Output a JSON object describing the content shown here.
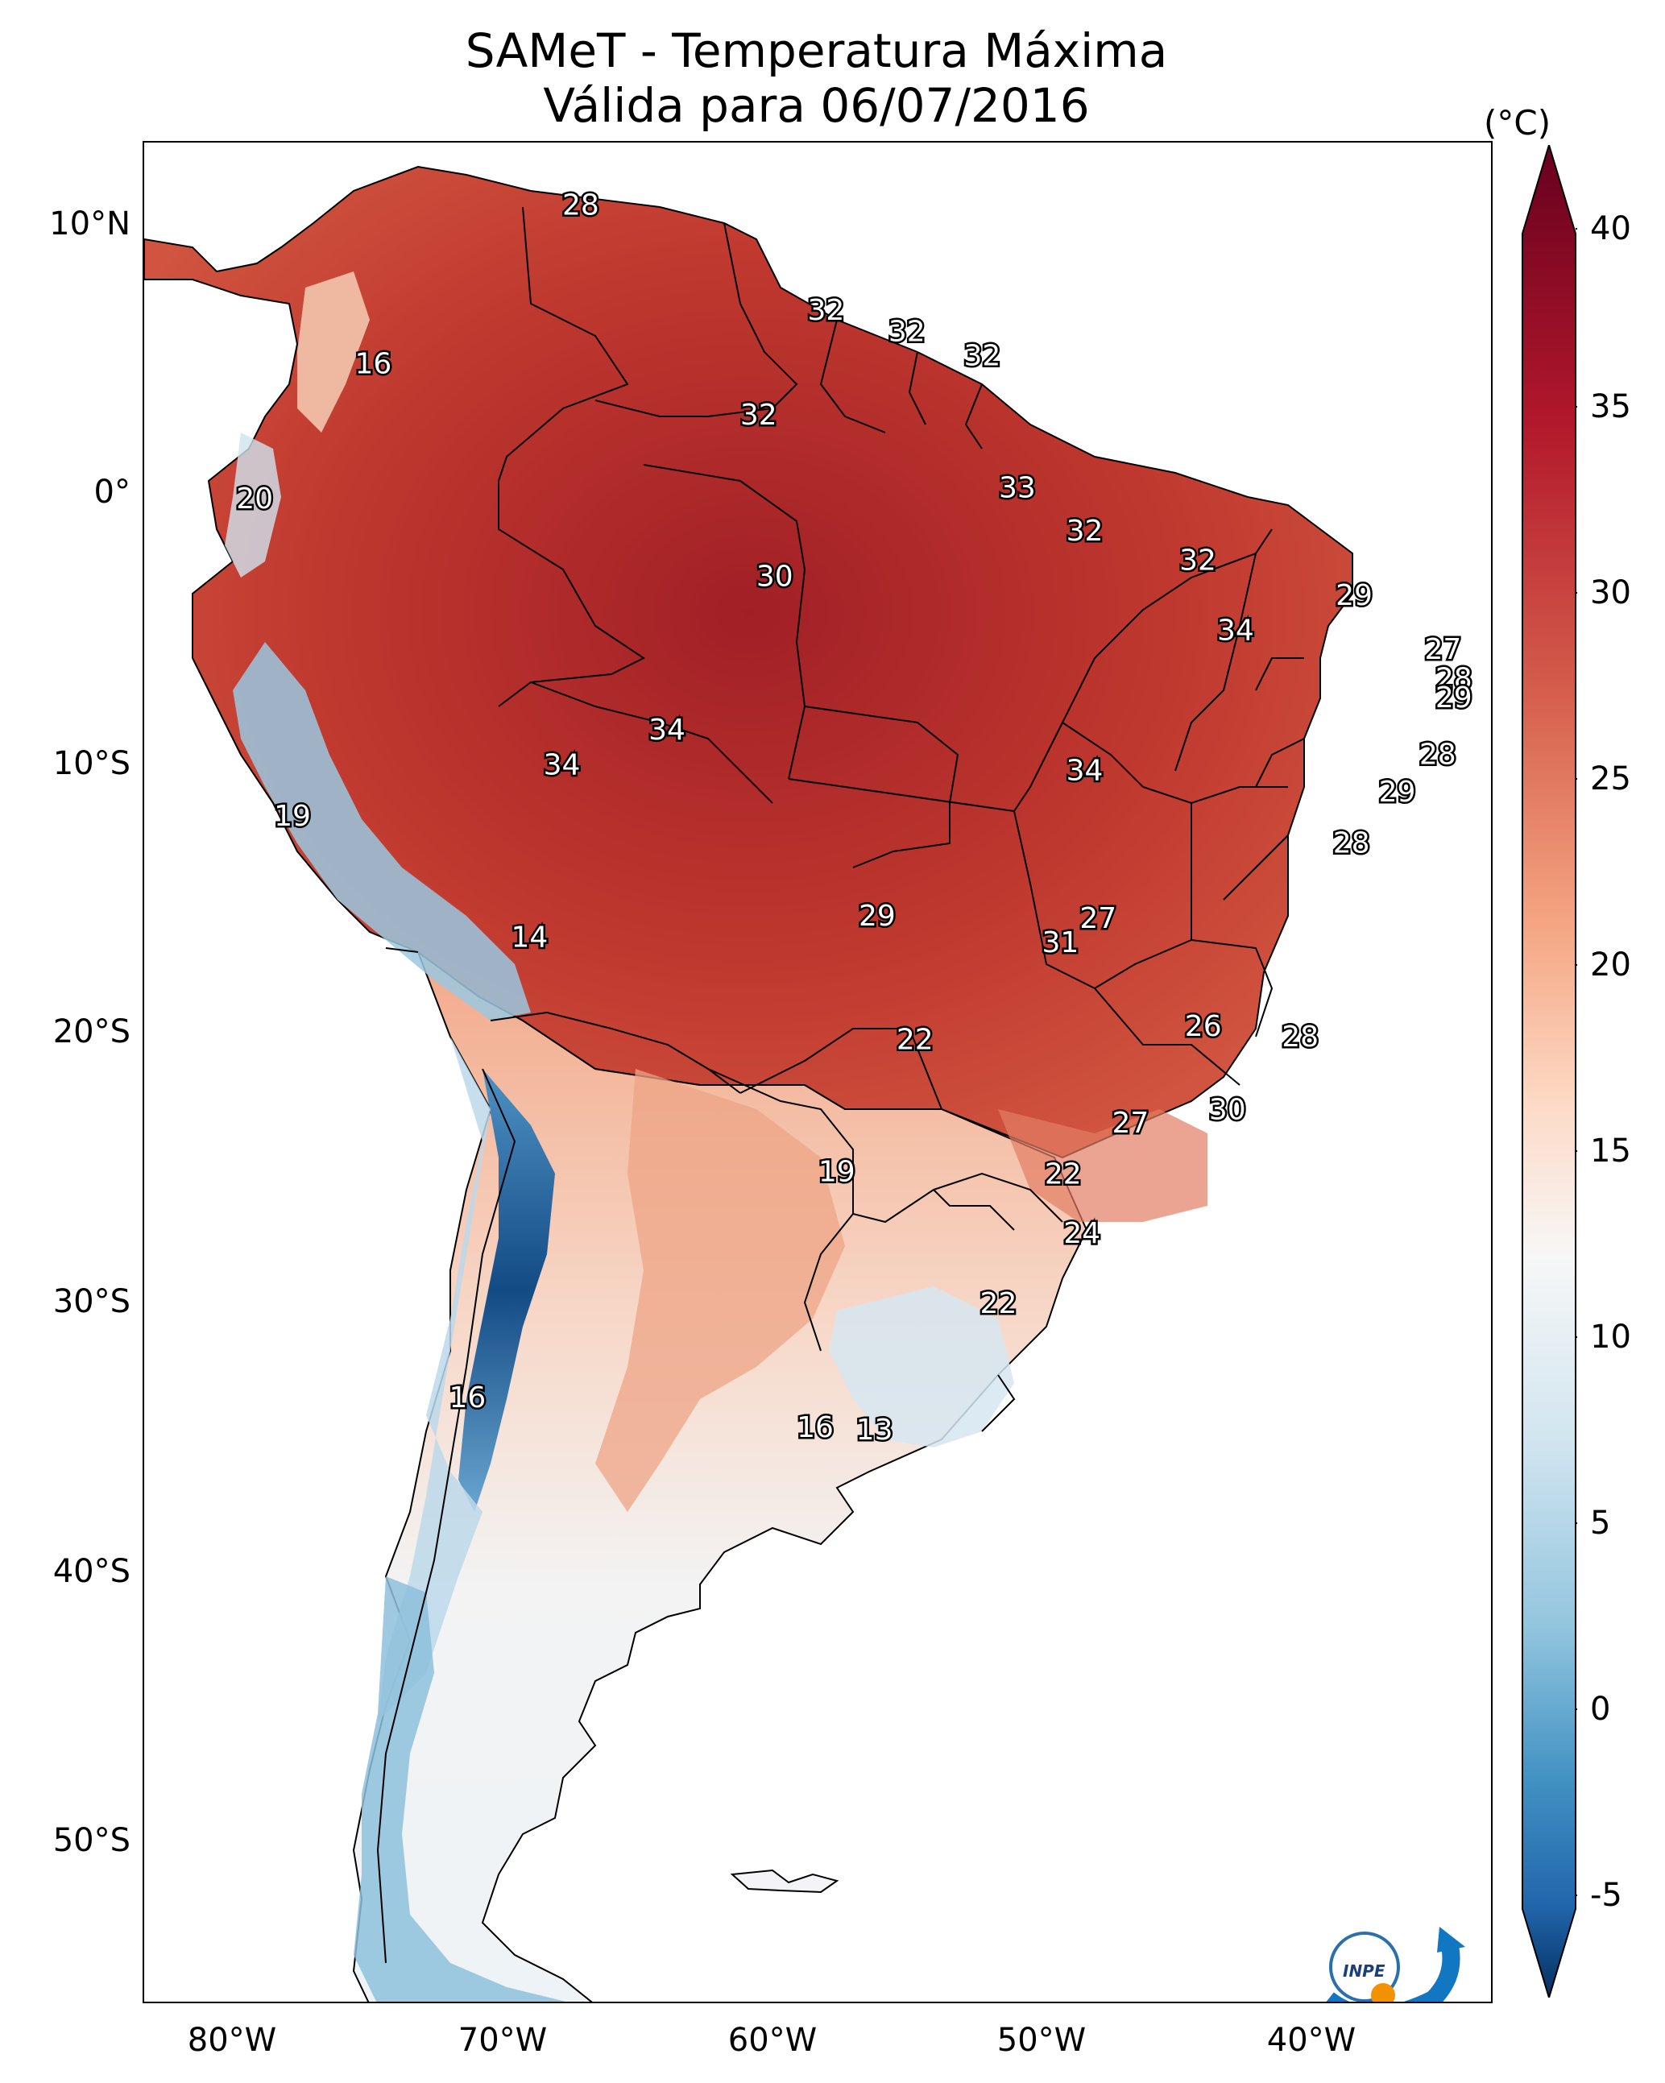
{
  "title": {
    "line1": "SAMeT - Temperatura Máxima",
    "line2": "Válida para 06/07/2016"
  },
  "axes": {
    "lat_labels": [
      "10°N",
      "0°",
      "10°S",
      "20°S",
      "30°S",
      "40°S",
      "50°S"
    ],
    "lon_labels": [
      "80°W",
      "70°W",
      "60°W",
      "50°W",
      "40°W"
    ]
  },
  "colorbar": {
    "unit": "(°C)",
    "ticks": [
      "40",
      "35",
      "30",
      "25",
      "20",
      "15",
      "10",
      "5",
      "0",
      "-5"
    ],
    "colormap": "RdBu_r",
    "range": [
      -5,
      40
    ]
  },
  "logo": {
    "text": "INPE"
  },
  "annotations": [
    {
      "value": "28",
      "lon": -66.8,
      "lat": 10.6
    },
    {
      "value": "16",
      "lon": -74.5,
      "lat": 4.7
    },
    {
      "value": "32",
      "lon": -57.7,
      "lat": 6.7
    },
    {
      "value": "32",
      "lon": -54.7,
      "lat": 5.9
    },
    {
      "value": "32",
      "lon": -51.9,
      "lat": 5.0
    },
    {
      "value": "32",
      "lon": -60.2,
      "lat": 2.8
    },
    {
      "value": "33",
      "lon": -50.6,
      "lat": 0.1
    },
    {
      "value": "20",
      "lon": -78.9,
      "lat": -0.3
    },
    {
      "value": "30",
      "lon": -59.6,
      "lat": -3.2
    },
    {
      "value": "32",
      "lon": -48.1,
      "lat": -1.5
    },
    {
      "value": "32",
      "lon": -43.9,
      "lat": -2.6
    },
    {
      "value": "29",
      "lon": -38.1,
      "lat": -3.9
    },
    {
      "value": "34",
      "lon": -42.5,
      "lat": -5.2
    },
    {
      "value": "27",
      "lon": -34.8,
      "lat": -5.9
    },
    {
      "value": "28",
      "lon": -34.4,
      "lat": -7.0
    },
    {
      "value": "29",
      "lon": -34.4,
      "lat": -7.7
    },
    {
      "value": "34",
      "lon": -63.6,
      "lat": -8.9
    },
    {
      "value": "34",
      "lon": -67.5,
      "lat": -10.2
    },
    {
      "value": "34",
      "lon": -48.1,
      "lat": -10.4
    },
    {
      "value": "28",
      "lon": -35.0,
      "lat": -9.8
    },
    {
      "value": "29",
      "lon": -36.5,
      "lat": -11.2
    },
    {
      "value": "19",
      "lon": -77.5,
      "lat": -12.1
    },
    {
      "value": "28",
      "lon": -38.2,
      "lat": -13.1
    },
    {
      "value": "14",
      "lon": -68.7,
      "lat": -16.6
    },
    {
      "value": "29",
      "lon": -55.8,
      "lat": -15.8
    },
    {
      "value": "27",
      "lon": -47.6,
      "lat": -15.9
    },
    {
      "value": "31",
      "lon": -49.0,
      "lat": -16.8
    },
    {
      "value": "22",
      "lon": -54.4,
      "lat": -20.4
    },
    {
      "value": "26",
      "lon": -43.7,
      "lat": -19.9
    },
    {
      "value": "28",
      "lon": -40.1,
      "lat": -20.3
    },
    {
      "value": "30",
      "lon": -42.8,
      "lat": -23.0
    },
    {
      "value": "27",
      "lon": -46.4,
      "lat": -23.5
    },
    {
      "value": "19",
      "lon": -57.3,
      "lat": -25.3
    },
    {
      "value": "22",
      "lon": -48.9,
      "lat": -25.4
    },
    {
      "value": "24",
      "lon": -48.2,
      "lat": -27.6
    },
    {
      "value": "22",
      "lon": -51.3,
      "lat": -30.2
    },
    {
      "value": "16",
      "lon": -71.0,
      "lat": -33.7
    },
    {
      "value": "16",
      "lon": -58.1,
      "lat": -34.8
    },
    {
      "value": "13",
      "lon": -55.9,
      "lat": -34.9
    }
  ]
}
